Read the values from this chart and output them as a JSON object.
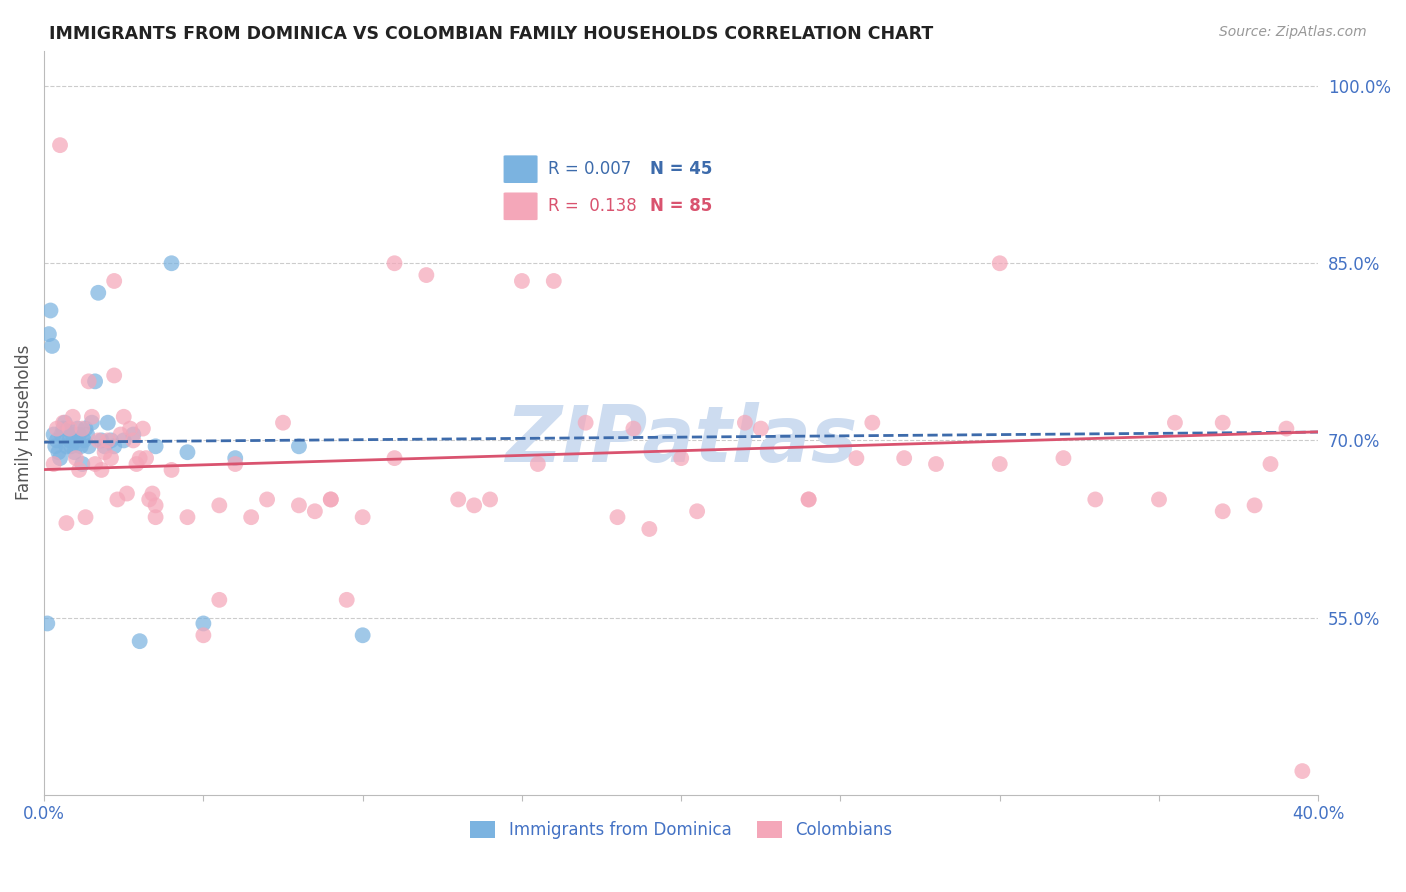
{
  "title": "IMMIGRANTS FROM DOMINICA VS COLOMBIAN FAMILY HOUSEHOLDS CORRELATION CHART",
  "source": "Source: ZipAtlas.com",
  "ylabel": "Family Households",
  "y_ticks_right": [
    100.0,
    85.0,
    70.0,
    55.0
  ],
  "xlim": [
    0.0,
    40.0
  ],
  "ylim": [
    40.0,
    103.0
  ],
  "blue_R": 0.007,
  "blue_N": 45,
  "pink_R": 0.138,
  "pink_N": 85,
  "blue_color": "#7bb3e0",
  "pink_color": "#f4a7b9",
  "blue_line_color": "#3d6bab",
  "pink_line_color": "#d9536f",
  "grid_color": "#cccccc",
  "tick_label_color": "#4472c4",
  "title_color": "#222222",
  "watermark_color": "#cddcf0",
  "blue_scatter_x": [
    0.1,
    0.15,
    0.2,
    0.25,
    0.3,
    0.35,
    0.4,
    0.45,
    0.5,
    0.55,
    0.6,
    0.65,
    0.7,
    0.75,
    0.8,
    0.85,
    0.9,
    0.95,
    1.0,
    1.05,
    1.1,
    1.15,
    1.2,
    1.25,
    1.3,
    1.35,
    1.4,
    1.5,
    1.6,
    1.7,
    1.8,
    1.9,
    2.0,
    2.1,
    2.2,
    2.5,
    2.8,
    3.0,
    3.5,
    4.0,
    4.5,
    5.0,
    6.0,
    8.0,
    10.0
  ],
  "blue_scatter_y": [
    54.5,
    79.0,
    81.0,
    78.0,
    70.5,
    69.5,
    70.0,
    69.0,
    68.5,
    70.5,
    71.0,
    71.5,
    69.5,
    71.0,
    70.0,
    69.5,
    70.5,
    69.0,
    70.0,
    71.0,
    70.5,
    69.5,
    68.0,
    70.0,
    71.0,
    70.5,
    69.5,
    71.5,
    75.0,
    82.5,
    70.0,
    69.5,
    71.5,
    70.0,
    69.5,
    70.0,
    70.5,
    53.0,
    69.5,
    85.0,
    69.0,
    54.5,
    68.5,
    69.5,
    53.5
  ],
  "pink_scatter_x": [
    0.3,
    0.4,
    0.5,
    0.6,
    0.7,
    0.8,
    0.9,
    1.0,
    1.1,
    1.2,
    1.3,
    1.4,
    1.5,
    1.6,
    1.7,
    1.8,
    1.9,
    2.0,
    2.1,
    2.2,
    2.3,
    2.4,
    2.5,
    2.6,
    2.7,
    2.8,
    2.9,
    3.0,
    3.1,
    3.2,
    3.3,
    3.4,
    3.5,
    4.0,
    4.5,
    5.0,
    5.5,
    6.0,
    6.5,
    7.0,
    8.0,
    9.0,
    9.5,
    10.0,
    11.0,
    12.0,
    13.0,
    14.0,
    15.0,
    16.0,
    17.0,
    18.0,
    19.0,
    20.0,
    22.0,
    24.0,
    26.0,
    28.0,
    30.0,
    32.0,
    35.0,
    37.0,
    38.0,
    38.5,
    39.0,
    39.5,
    2.2,
    3.5,
    5.5,
    7.5,
    9.0,
    11.0,
    13.5,
    15.5,
    18.5,
    20.5,
    24.0,
    27.0,
    30.0,
    33.0,
    35.5,
    37.0,
    8.5,
    22.5,
    25.5
  ],
  "pink_scatter_y": [
    68.0,
    71.0,
    95.0,
    71.5,
    63.0,
    71.0,
    72.0,
    68.5,
    67.5,
    71.0,
    63.5,
    75.0,
    72.0,
    68.0,
    70.0,
    67.5,
    69.0,
    70.0,
    68.5,
    83.5,
    65.0,
    70.5,
    72.0,
    65.5,
    71.0,
    70.0,
    68.0,
    68.5,
    71.0,
    68.5,
    65.0,
    65.5,
    63.5,
    67.5,
    63.5,
    53.5,
    64.5,
    68.0,
    63.5,
    65.0,
    64.5,
    65.0,
    56.5,
    63.5,
    85.0,
    84.0,
    65.0,
    65.0,
    83.5,
    83.5,
    71.5,
    63.5,
    62.5,
    68.5,
    71.5,
    65.0,
    71.5,
    68.0,
    85.0,
    68.5,
    65.0,
    71.5,
    64.5,
    68.0,
    71.0,
    42.0,
    75.5,
    64.5,
    56.5,
    71.5,
    65.0,
    68.5,
    64.5,
    68.0,
    71.0,
    64.0,
    65.0,
    68.5,
    68.0,
    65.0,
    71.5,
    64.0,
    64.0,
    71.0,
    68.5
  ]
}
